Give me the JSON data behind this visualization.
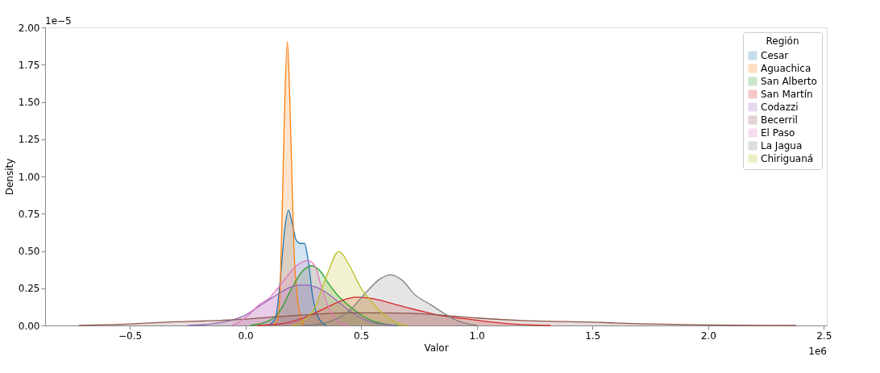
{
  "chart_data": {
    "type": "area",
    "xlabel": "Valor",
    "ylabel": "Density",
    "legend_title": "Región",
    "legend": "top right",
    "grid": false,
    "xlim": [
      -0.866,
      2.513
    ],
    "ylim": [
      0,
      2.0
    ],
    "xticks": [
      {
        "value": -0.5,
        "label": "−0.5"
      },
      {
        "value": 0,
        "label": "0.0"
      },
      0.5,
      {
        "value": 1,
        "label": "1.0"
      },
      1.5,
      {
        "value": 2,
        "label": "2.0"
      },
      2.5
    ],
    "yticks": [
      {
        "value": 0,
        "label": "0.00"
      },
      0.25,
      {
        "value": 0.5,
        "label": "0.50"
      },
      0.75,
      {
        "value": 1,
        "label": "1.00"
      },
      1.25,
      {
        "value": 1.5,
        "label": "1.50"
      },
      1.75,
      {
        "value": 2,
        "label": "2.00"
      }
    ],
    "annotations": [
      "1e−5",
      "1e6"
    ],
    "series": [
      {
        "name": "Cesar",
        "color": "#1f77b4",
        "x": [
          0.1,
          0.13,
          0.15,
          0.17,
          0.186,
          0.2,
          0.22,
          0.24,
          0.255,
          0.27,
          0.29,
          0.31,
          0.33,
          0.35
        ],
        "values": [
          0,
          0.05,
          0.3,
          0.65,
          0.774,
          0.7,
          0.57,
          0.55,
          0.55,
          0.45,
          0.2,
          0.07,
          0.02,
          0
        ]
      },
      {
        "name": "Aguachica",
        "color": "#ff7f0e",
        "x": [
          0.12,
          0.14,
          0.15,
          0.16,
          0.17,
          0.181,
          0.19,
          0.2,
          0.21,
          0.22,
          0.235,
          0.25
        ],
        "values": [
          0,
          0.05,
          0.25,
          0.85,
          1.5,
          1.905,
          1.6,
          1.05,
          0.5,
          0.25,
          0.08,
          0
        ]
      },
      {
        "name": "San Alberto",
        "color": "#2ca02c",
        "x": [
          0.02,
          0.1,
          0.15,
          0.2,
          0.25,
          0.286,
          0.32,
          0.36,
          0.4,
          0.45,
          0.5,
          0.55,
          0.6,
          0.66
        ],
        "values": [
          0,
          0.03,
          0.1,
          0.25,
          0.37,
          0.4,
          0.37,
          0.28,
          0.2,
          0.13,
          0.07,
          0.03,
          0.01,
          0
        ]
      },
      {
        "name": "San Martín",
        "color": "#d62728",
        "x": [
          0.05,
          0.15,
          0.25,
          0.35,
          0.42,
          0.48,
          0.55,
          0.65,
          0.75,
          0.85,
          0.95,
          1.05,
          1.15,
          1.32
        ],
        "values": [
          0,
          0.01,
          0.05,
          0.12,
          0.17,
          0.19,
          0.18,
          0.14,
          0.1,
          0.065,
          0.045,
          0.025,
          0.01,
          0
        ]
      },
      {
        "name": "Codazzi",
        "color": "#9467bd",
        "x": [
          -0.25,
          -0.15,
          -0.05,
          0.0,
          0.05,
          0.1,
          0.15,
          0.2,
          0.25,
          0.3,
          0.35,
          0.4,
          0.45,
          0.5,
          0.55,
          0.65
        ],
        "values": [
          0,
          0.01,
          0.04,
          0.07,
          0.12,
          0.17,
          0.22,
          0.26,
          0.272,
          0.26,
          0.22,
          0.16,
          0.1,
          0.05,
          0.02,
          0
        ]
      },
      {
        "name": "Becerril",
        "color": "#8c564b",
        "x": [
          -0.72,
          -0.5,
          -0.3,
          -0.1,
          0.0,
          0.1,
          0.2,
          0.3,
          0.45,
          0.6,
          0.8,
          1.0,
          1.2,
          1.5,
          1.7,
          2.0,
          2.38
        ],
        "values": [
          0,
          0.01,
          0.025,
          0.035,
          0.043,
          0.055,
          0.065,
          0.075,
          0.085,
          0.085,
          0.075,
          0.05,
          0.033,
          0.022,
          0.012,
          0.003,
          0
        ]
      },
      {
        "name": "El Paso",
        "color": "#e377c2",
        "x": [
          -0.06,
          -0.02,
          0.02,
          0.06,
          0.1,
          0.14,
          0.18,
          0.22,
          0.27,
          0.3,
          0.33,
          0.36,
          0.4,
          0.44
        ],
        "values": [
          0,
          0.03,
          0.08,
          0.14,
          0.18,
          0.25,
          0.33,
          0.4,
          0.436,
          0.4,
          0.25,
          0.12,
          0.03,
          0
        ]
      },
      {
        "name": "La Jagua",
        "color": "#7f7f7f",
        "x": [
          0.25,
          0.35,
          0.45,
          0.52,
          0.58,
          0.628,
          0.68,
          0.73,
          0.8,
          0.86,
          0.92,
          1.0
        ],
        "values": [
          0,
          0.02,
          0.1,
          0.22,
          0.31,
          0.34,
          0.3,
          0.21,
          0.14,
          0.08,
          0.03,
          0
        ]
      },
      {
        "name": "Chiriguaná",
        "color": "#bcbd22",
        "x": [
          0.2,
          0.25,
          0.3,
          0.35,
          0.404,
          0.45,
          0.5,
          0.55,
          0.6,
          0.65,
          0.7
        ],
        "values": [
          0,
          0.03,
          0.12,
          0.33,
          0.497,
          0.4,
          0.25,
          0.15,
          0.07,
          0.02,
          0
        ]
      }
    ]
  }
}
